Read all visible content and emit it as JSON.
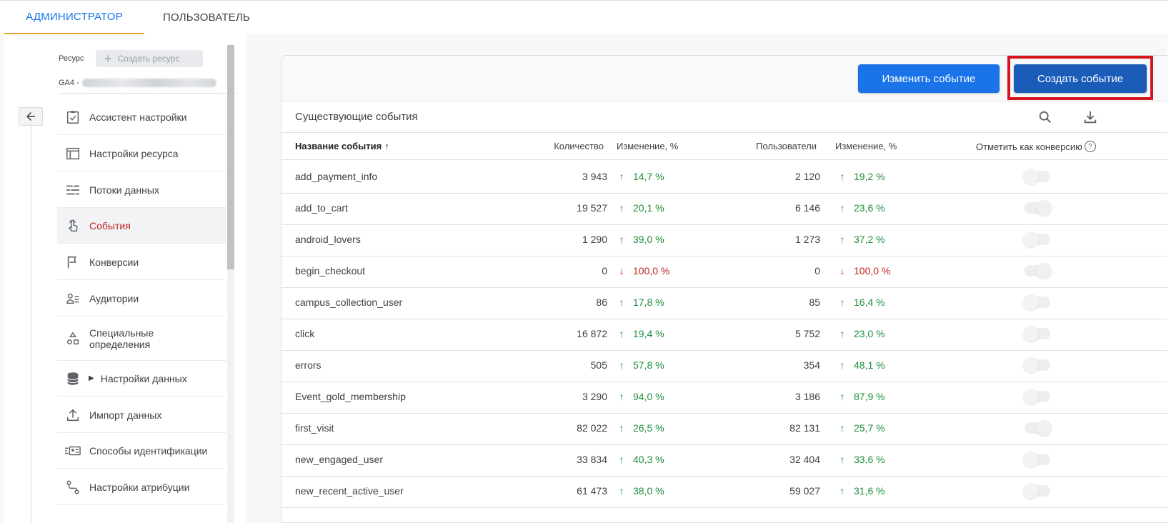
{
  "tabs": {
    "admin": "АДМИНИСТРАТОР",
    "user": "ПОЛЬЗОВАТЕЛЬ"
  },
  "resource": {
    "label": "Ресурс",
    "create_label": "Создать ресурс",
    "ga4_prefix": "GA4 -"
  },
  "nav": {
    "items": [
      {
        "label": "Ассистент настройки",
        "icon": "checklist-icon"
      },
      {
        "label": "Настройки ресурса",
        "icon": "layout-icon"
      },
      {
        "label": "Потоки данных",
        "icon": "streams-icon"
      },
      {
        "label": "События",
        "icon": "touch-icon",
        "active": true
      },
      {
        "label": "Конверсии",
        "icon": "flag-icon"
      },
      {
        "label": "Аудитории",
        "icon": "audience-icon"
      },
      {
        "label": "Специальные определения",
        "icon": "shapes-icon"
      },
      {
        "label": "Настройки данных",
        "icon": "database-icon"
      },
      {
        "label": "Импорт данных",
        "icon": "upload-icon"
      },
      {
        "label": "Способы идентификации",
        "icon": "id-icon"
      },
      {
        "label": "Настройки атрибуции",
        "icon": "attribution-icon"
      }
    ]
  },
  "toolbar": {
    "edit_label": "Изменить событие",
    "create_label": "Создать событие"
  },
  "events": {
    "title": "Существующие события",
    "columns": {
      "name": "Название события",
      "count": "Количество",
      "change": "Изменение, %",
      "users": "Пользователи",
      "users_change": "Изменение, %",
      "conversion": "Отметить как конверсию"
    },
    "rows": [
      {
        "name": "add_payment_info",
        "count": "3 943",
        "change": "14,7 %",
        "change_dir": "up",
        "users": "2 120",
        "users_change": "19,2 %",
        "users_dir": "up",
        "conversion": false
      },
      {
        "name": "add_to_cart",
        "count": "19 527",
        "change": "20,1 %",
        "change_dir": "up",
        "users": "6 146",
        "users_change": "23,6 %",
        "users_dir": "up",
        "conversion": true
      },
      {
        "name": "android_lovers",
        "count": "1 290",
        "change": "39,0 %",
        "change_dir": "up",
        "users": "1 273",
        "users_change": "37,2 %",
        "users_dir": "up",
        "conversion": false
      },
      {
        "name": "begin_checkout",
        "count": "0",
        "change": "100,0 %",
        "change_dir": "down",
        "users": "0",
        "users_change": "100,0 %",
        "users_dir": "down",
        "conversion": true
      },
      {
        "name": "campus_collection_user",
        "count": "86",
        "change": "17,8 %",
        "change_dir": "up",
        "users": "85",
        "users_change": "16,4 %",
        "users_dir": "up",
        "conversion": false
      },
      {
        "name": "click",
        "count": "16 872",
        "change": "19,4 %",
        "change_dir": "up",
        "users": "5 752",
        "users_change": "23,0 %",
        "users_dir": "up",
        "conversion": false
      },
      {
        "name": "errors",
        "count": "505",
        "change": "57,8 %",
        "change_dir": "up",
        "users": "354",
        "users_change": "48,1 %",
        "users_dir": "up",
        "conversion": false
      },
      {
        "name": "Event_gold_membership",
        "count": "3 290",
        "change": "94,0 %",
        "change_dir": "up",
        "users": "3 186",
        "users_change": "87,9 %",
        "users_dir": "up",
        "conversion": false
      },
      {
        "name": "first_visit",
        "count": "82 022",
        "change": "26,5 %",
        "change_dir": "up",
        "users": "82 131",
        "users_change": "25,7 %",
        "users_dir": "up",
        "conversion": true
      },
      {
        "name": "new_engaged_user",
        "count": "33 834",
        "change": "40,3 %",
        "change_dir": "up",
        "users": "32 404",
        "users_change": "33,6 %",
        "users_dir": "up",
        "conversion": false
      },
      {
        "name": "new_recent_active_user",
        "count": "61 473",
        "change": "38,0 %",
        "change_dir": "up",
        "users": "59 027",
        "users_change": "31,6 %",
        "users_dir": "up",
        "conversion": false
      }
    ]
  },
  "colors": {
    "accent": "#1a73e8",
    "highlight": "#d6141c",
    "up": "#1e8e3e",
    "down": "#c5221f"
  }
}
